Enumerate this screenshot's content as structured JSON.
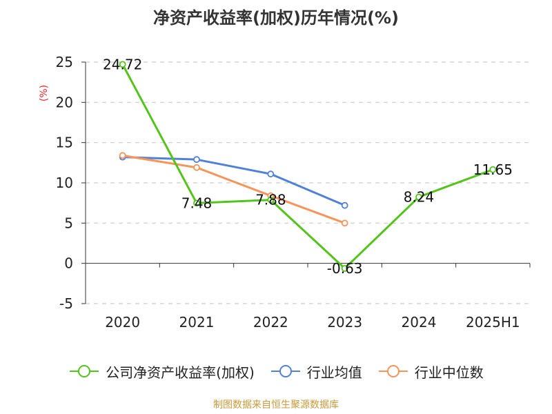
{
  "source": "制图数据来自恒生聚源数据库",
  "chart_data": {
    "type": "line",
    "title": "净资产收益率(加权)历年情况(%)",
    "ylabel": "(%)",
    "xlabel": "",
    "categories": [
      "2020",
      "2021",
      "2022",
      "2023",
      "2024",
      "2025H1"
    ],
    "ylim": [
      -5,
      25
    ],
    "yticks": [
      -5,
      0,
      5,
      10,
      15,
      20,
      25
    ],
    "grid": true,
    "legend_position": "bottom",
    "series": [
      {
        "name": "公司净资产收益率(加权)",
        "color": "#52c41a",
        "values": [
          24.72,
          7.48,
          7.88,
          -0.63,
          8.24,
          11.65
        ],
        "labels": [
          "24.72",
          "7.48",
          "7.88",
          "-0.63",
          "8.24",
          "11.65"
        ]
      },
      {
        "name": "行业均值",
        "color": "#4f81d8",
        "values": [
          13.2,
          12.9,
          11.1,
          7.2,
          null,
          null
        ]
      },
      {
        "name": "行业中位数",
        "color": "#f79459",
        "values": [
          13.4,
          11.9,
          8.4,
          5.0,
          null,
          null
        ]
      }
    ]
  }
}
